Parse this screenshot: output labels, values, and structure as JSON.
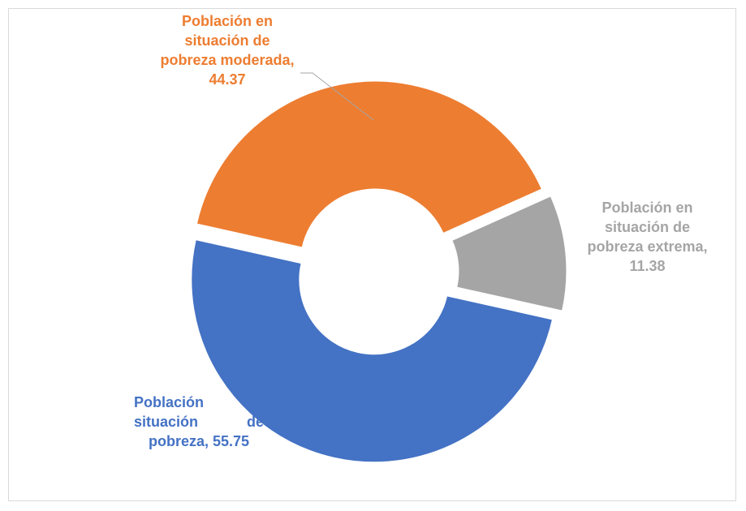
{
  "chart_data": {
    "type": "donut",
    "values": [
      55.75,
      44.37,
      11.38
    ],
    "value_labels": [
      "Población en situación de pobreza, 55.75",
      "Población en situación de pobreza moderada, 44.37",
      "Población en situación de pobreza extrema, 11.38"
    ],
    "colors": [
      "#4472c4",
      "#ed7d31",
      "#a5a5a5"
    ]
  }
}
